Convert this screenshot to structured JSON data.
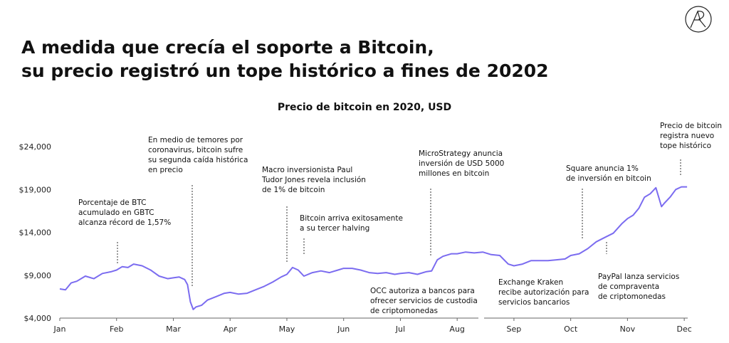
{
  "headline": {
    "line1": "A medida que crecía el soporte a Bitcoin,",
    "line2": "su precio registró un tope histórico a fines de 20202"
  },
  "logo_icon": "circle-monogram-icon",
  "colors": {
    "line": "#7b6cf0",
    "axis": "#666666",
    "annotation_text": "#111111"
  },
  "chart_data": {
    "type": "line",
    "title": "Precio de bitcoin en 2020, USD",
    "xlabel": "",
    "ylabel": "",
    "x_ticks": [
      "Jan",
      "Feb",
      "Mar",
      "Apr",
      "May",
      "Jun",
      "Jul",
      "Aug",
      "Sep",
      "Oct",
      "Nov",
      "Dec"
    ],
    "y_ticks": [
      "$4,000",
      "$9,000",
      "$14,000",
      "$19,000",
      "$24,000"
    ],
    "ylim": [
      4000,
      24000
    ],
    "xlim": [
      0,
      11.5
    ],
    "grid": false,
    "series": [
      {
        "x": [
          0,
          0.1,
          0.2,
          0.3,
          0.45,
          0.6,
          0.75,
          0.9,
          1.0,
          1.1,
          1.2,
          1.3,
          1.45,
          1.6,
          1.75,
          1.9,
          2.0,
          2.1,
          2.2,
          2.25,
          2.3,
          2.35,
          2.4,
          2.5,
          2.6,
          2.75,
          2.9,
          3.0,
          3.15,
          3.3,
          3.45,
          3.6,
          3.75,
          3.9,
          4.0,
          4.1,
          4.2,
          4.3,
          4.45,
          4.6,
          4.75,
          4.9,
          5.0,
          5.15,
          5.3,
          5.45,
          5.6,
          5.75,
          5.9,
          6.0,
          6.15,
          6.3,
          6.45,
          6.55,
          6.65,
          6.75,
          6.9,
          7.0,
          7.15,
          7.3,
          7.45,
          7.6,
          7.75,
          7.9,
          8.0,
          8.15,
          8.3,
          8.45,
          8.6,
          8.75,
          8.9,
          9.0,
          9.15,
          9.3,
          9.45,
          9.6,
          9.75,
          9.9,
          10.0,
          10.1,
          10.2,
          10.3,
          10.4,
          10.5,
          10.6,
          10.65,
          10.75,
          10.85,
          10.95,
          11.05
        ],
        "y": [
          7400,
          7300,
          8100,
          8300,
          8900,
          8600,
          9200,
          9400,
          9600,
          10000,
          9900,
          10300,
          10100,
          9600,
          8900,
          8600,
          8700,
          8800,
          8500,
          7900,
          5900,
          5000,
          5300,
          5500,
          6100,
          6500,
          6900,
          7000,
          6800,
          6900,
          7300,
          7700,
          8200,
          8800,
          9100,
          9900,
          9600,
          8900,
          9300,
          9500,
          9300,
          9600,
          9800,
          9800,
          9600,
          9300,
          9200,
          9300,
          9100,
          9200,
          9300,
          9100,
          9400,
          9500,
          10800,
          11200,
          11500,
          11500,
          11700,
          11600,
          11700,
          11400,
          11300,
          10300,
          10100,
          10300,
          10700,
          10700,
          10700,
          10800,
          10900,
          11300,
          11500,
          12100,
          12900,
          13400,
          13900,
          15000,
          15600,
          16000,
          16800,
          18100,
          18500,
          19200,
          17000,
          17400,
          18100,
          19000,
          19300,
          19300
        ]
      }
    ],
    "annotations": [
      {
        "lines": [
          "Porcentaje de BTC",
          "acumulado en GBTC",
          "alcanza récord de 1,57%"
        ],
        "x": 1.0,
        "y": 10000
      },
      {
        "lines": [
          "En medio de temores por",
          "coronavirus, bitcoin sufre",
          "su segunda caída histórica",
          "en precio"
        ],
        "x": 2.35,
        "y": 5300
      },
      {
        "lines": [
          "Macro inversionista Paul",
          "Tudor Jones revela inclusión",
          "de 1% de bitcoin"
        ],
        "x": 4.0,
        "y": 10000
      },
      {
        "lines": [
          "Bitcoin arriva exitosamente",
          "a su tercer halving"
        ],
        "x": 4.35,
        "y": 9200
      },
      {
        "lines": [
          "MicroStrategy anuncia",
          "inversión de USD 5000",
          "millones en bitcoin"
        ],
        "x": 6.6,
        "y": 9800
      },
      {
        "lines": [
          "OCC autoriza a bancos para",
          "ofrecer servicios de custodia",
          "de criptomonedas"
        ],
        "x": 6.05,
        "y": 9200
      },
      {
        "lines": [
          "Exchange Kraken",
          "recibe autorización para",
          "servicios bancarios"
        ],
        "x": 8.2,
        "y": 10200
      },
      {
        "lines": [
          "Square anuncia 1%",
          "de inversión en bitcoin"
        ],
        "x": 9.2,
        "y": 11400
      },
      {
        "lines": [
          "PayPal lanza servicios",
          "de compraventa",
          "de criptomonedas"
        ],
        "x": 9.7,
        "y": 13300
      },
      {
        "lines": [
          "Precio de bitcoin",
          "registra nuevo",
          "tope histórico"
        ],
        "x": 11.0,
        "y": 19500
      }
    ]
  }
}
